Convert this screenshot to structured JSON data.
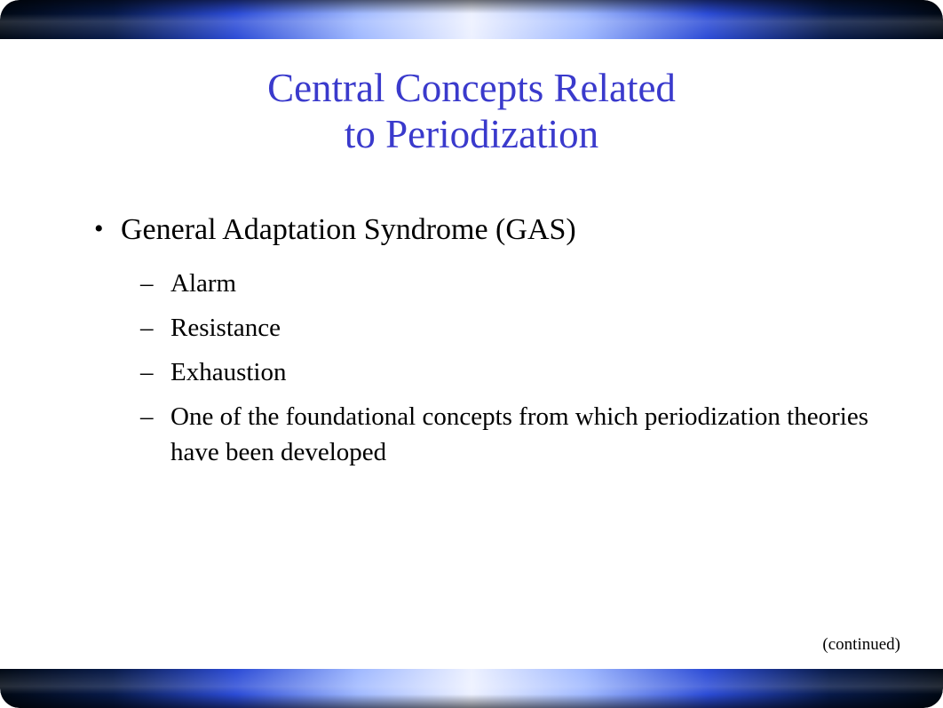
{
  "colors": {
    "title_color": "#3a3acc",
    "body_color": "#000000",
    "background": "#ffffff",
    "bar_gradient": [
      "#000814",
      "#071a4a",
      "#2b4bd6",
      "#9fb8ff",
      "#edf1ff",
      "#9fb8ff",
      "#2b4bd6",
      "#071a4a",
      "#000814"
    ]
  },
  "typography": {
    "title_fontsize": 45,
    "bullet_l1_fontsize": 34,
    "bullet_l2_fontsize": 29,
    "continued_fontsize": 19,
    "font_family": "Times New Roman"
  },
  "title": {
    "line1": "Central Concepts Related",
    "line2": "to Periodization"
  },
  "bullets": {
    "l1": "General Adaptation Syndrome (GAS)",
    "sub": [
      "Alarm",
      "Resistance",
      "Exhaustion",
      "One of the foundational concepts from which periodization theories have been developed"
    ]
  },
  "continued_label": "(continued)"
}
